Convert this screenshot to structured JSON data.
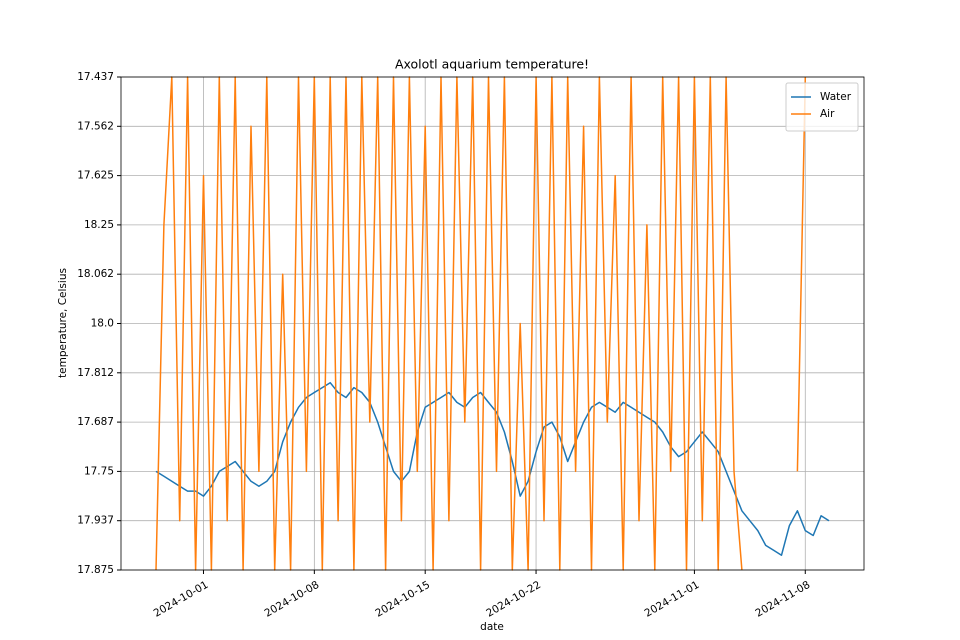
{
  "chart_data": {
    "type": "line",
    "title": "Axolotl aquarium temperature!",
    "xlabel": "date",
    "ylabel": "temperature, Celsius",
    "x": [
      "2024-09-28T00:00",
      "2024-09-28T12:00",
      "2024-09-29T00:00",
      "2024-09-29T12:00",
      "2024-09-30T00:00",
      "2024-09-30T12:00",
      "2024-10-01T00:00",
      "2024-10-01T12:00",
      "2024-10-02T00:00",
      "2024-10-02T12:00",
      "2024-10-03T00:00",
      "2024-10-03T12:00",
      "2024-10-04T00:00",
      "2024-10-04T12:00",
      "2024-10-05T00:00",
      "2024-10-05T12:00",
      "2024-10-06T00:00",
      "2024-10-06T12:00",
      "2024-10-07T00:00",
      "2024-10-07T12:00",
      "2024-10-08T00:00",
      "2024-10-08T12:00",
      "2024-10-09T00:00",
      "2024-10-09T12:00",
      "2024-10-10T00:00",
      "2024-10-10T12:00",
      "2024-10-11T00:00",
      "2024-10-11T12:00",
      "2024-10-12T00:00",
      "2024-10-12T12:00",
      "2024-10-13T00:00",
      "2024-10-13T12:00",
      "2024-10-14T00:00",
      "2024-10-14T12:00",
      "2024-10-15T00:00",
      "2024-10-15T12:00",
      "2024-10-16T00:00",
      "2024-10-16T12:00",
      "2024-10-17T00:00",
      "2024-10-17T12:00",
      "2024-10-18T00:00",
      "2024-10-18T12:00",
      "2024-10-19T00:00",
      "2024-10-19T12:00",
      "2024-10-20T00:00",
      "2024-10-20T12:00",
      "2024-10-21T00:00",
      "2024-10-21T12:00",
      "2024-10-22T00:00",
      "2024-10-22T12:00",
      "2024-10-23T00:00",
      "2024-10-23T12:00",
      "2024-10-24T00:00",
      "2024-10-24T12:00",
      "2024-10-25T00:00",
      "2024-10-25T12:00",
      "2024-10-26T00:00",
      "2024-10-26T12:00",
      "2024-10-27T00:00",
      "2024-10-27T12:00",
      "2024-10-28T00:00",
      "2024-10-28T12:00",
      "2024-10-29T00:00",
      "2024-10-29T12:00",
      "2024-10-30T00:00",
      "2024-10-30T12:00",
      "2024-10-31T00:00",
      "2024-10-31T12:00",
      "2024-11-01T00:00",
      "2024-11-01T12:00",
      "2024-11-02T00:00",
      "2024-11-02T12:00",
      "2024-11-03T00:00",
      "2024-11-03T12:00",
      "2024-11-04T00:00",
      "2024-11-04T12:00",
      "2024-11-05T00:00",
      "2024-11-05T12:00",
      "2024-11-06T00:00",
      "2024-11-06T12:00",
      "2024-11-07T00:00",
      "2024-11-07T12:00",
      "2024-11-08T00:00",
      "2024-11-08T12:00",
      "2024-11-09T00:00",
      "2024-11-09T12:00"
    ],
    "series": [
      {
        "name": "Water",
        "color": "#1f77b4",
        "values": [
          2.0,
          1.9,
          1.8,
          1.7,
          1.6,
          1.6,
          1.5,
          1.7,
          2.0,
          2.1,
          2.2,
          2.0,
          1.8,
          1.7,
          1.8,
          2.0,
          2.6,
          3.0,
          3.3,
          3.5,
          3.6,
          3.7,
          3.8,
          3.6,
          3.5,
          3.7,
          3.6,
          3.4,
          3.0,
          2.5,
          2.0,
          1.8,
          2.0,
          2.8,
          3.3,
          3.4,
          3.5,
          3.6,
          3.4,
          3.3,
          3.5,
          3.6,
          3.4,
          3.2,
          2.8,
          2.2,
          1.5,
          1.8,
          2.4,
          2.9,
          3.0,
          2.7,
          2.2,
          2.6,
          3.0,
          3.3,
          3.4,
          3.3,
          3.2,
          3.4,
          3.3,
          3.2,
          3.1,
          3.0,
          2.8,
          2.5,
          2.3,
          2.4,
          2.6,
          2.8,
          2.6,
          2.4,
          2.0,
          1.6,
          1.2,
          1.0,
          0.8,
          0.5,
          0.4,
          0.3,
          0.9,
          1.2,
          0.8,
          0.7,
          1.1,
          1.0
        ]
      },
      {
        "name": "Air",
        "color": "#ff7f0e",
        "values": [
          0,
          7,
          10,
          1,
          10,
          0,
          8,
          0,
          10,
          1,
          10,
          0,
          9,
          2,
          10,
          0,
          6,
          0,
          10,
          2,
          10,
          0,
          10,
          1,
          10,
          0,
          10,
          3,
          10,
          0,
          10,
          1,
          10,
          2,
          9,
          0,
          10,
          1,
          10,
          3,
          10,
          0,
          10,
          2,
          10,
          0,
          5,
          0,
          10,
          1,
          10,
          0,
          10,
          2,
          9,
          0,
          10,
          3,
          8,
          0,
          10,
          1,
          7,
          0,
          10,
          2,
          10,
          0,
          10,
          1,
          10,
          0,
          10,
          2,
          0,
          null,
          null,
          null,
          null,
          null,
          null,
          2,
          10,
          null,
          null,
          null
        ]
      }
    ],
    "xlim": [
      "2024-09-25T19:00",
      "2024-11-11T17:00"
    ],
    "xticks": [
      "2024-10-01",
      "2024-10-08",
      "2024-10-15",
      "2024-10-22",
      "2024-11-01",
      "2024-11-08"
    ],
    "ylim": [
      0,
      10
    ],
    "yticks": [
      {
        "value": 0,
        "label": "17.875"
      },
      {
        "value": 1,
        "label": "17.937"
      },
      {
        "value": 2,
        "label": "17.75"
      },
      {
        "value": 3,
        "label": "17.687"
      },
      {
        "value": 4,
        "label": "17.812"
      },
      {
        "value": 5,
        "label": "18.0"
      },
      {
        "value": 6,
        "label": "18.062"
      },
      {
        "value": 7,
        "label": "18.25"
      },
      {
        "value": 8,
        "label": "17.625"
      },
      {
        "value": 9,
        "label": "17.562"
      },
      {
        "value": 10,
        "label": "17.437"
      }
    ],
    "grid": true,
    "legend": "upper right"
  }
}
